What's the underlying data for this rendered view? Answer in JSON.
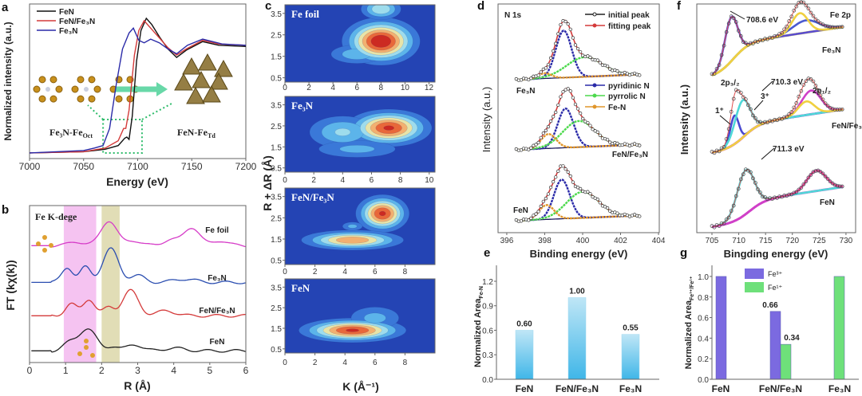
{
  "panel_labels": [
    "a",
    "b",
    "c",
    "d",
    "e",
    "f",
    "g"
  ],
  "chart_data": [
    {
      "panel": "a",
      "type": "line",
      "xlabel": "Energy (eV)",
      "ylabel": "Normalized intensity (a.u.)",
      "xlim": [
        7000,
        7200
      ],
      "xticks": [
        "7000",
        "7050",
        "7100",
        "7150",
        "7200"
      ],
      "series": [
        {
          "name": "FeN",
          "color": "#111111",
          "points": [
            [
              7000,
              0
            ],
            [
              7050,
              0.01
            ],
            [
              7070,
              0.03
            ],
            [
              7082,
              0.06
            ],
            [
              7088,
              0.12
            ],
            [
              7090,
              0.13
            ],
            [
              7092,
              0.11
            ],
            [
              7095,
              0.3
            ],
            [
              7099,
              0.75
            ],
            [
              7103,
              1.0
            ],
            [
              7108,
              1.1
            ],
            [
              7113,
              1.05
            ],
            [
              7120,
              0.95
            ],
            [
              7128,
              0.85
            ],
            [
              7136,
              0.78
            ],
            [
              7145,
              0.84
            ],
            [
              7160,
              0.91
            ],
            [
              7175,
              0.88
            ],
            [
              7200,
              0.87
            ]
          ]
        },
        {
          "name": "FeN/Fe₃N",
          "color": "#d43a3a",
          "points": [
            [
              7000,
              0
            ],
            [
              7050,
              0.01
            ],
            [
              7070,
              0.04
            ],
            [
              7082,
              0.1
            ],
            [
              7087,
              0.2
            ],
            [
              7089,
              0.2
            ],
            [
              7092,
              0.35
            ],
            [
              7097,
              0.8
            ],
            [
              7101,
              1.0
            ],
            [
              7106,
              1.08
            ],
            [
              7112,
              1.02
            ],
            [
              7120,
              0.94
            ],
            [
              7128,
              0.86
            ],
            [
              7136,
              0.8
            ],
            [
              7145,
              0.85
            ],
            [
              7160,
              0.92
            ],
            [
              7175,
              0.89
            ],
            [
              7200,
              0.88
            ]
          ]
        },
        {
          "name": "Fe₃N",
          "color": "#2a2aa8",
          "points": [
            [
              7000,
              0
            ],
            [
              7050,
              0.02
            ],
            [
              7060,
              0.04
            ],
            [
              7068,
              0.06
            ],
            [
              7074,
              0.2
            ],
            [
              7080,
              0.55
            ],
            [
              7086,
              0.85
            ],
            [
              7092,
              0.98
            ],
            [
              7096,
              1.02
            ],
            [
              7101,
              0.92
            ],
            [
              7106,
              0.9
            ],
            [
              7112,
              0.93
            ],
            [
              7120,
              0.9
            ],
            [
              7128,
              0.85
            ],
            [
              7136,
              0.81
            ],
            [
              7146,
              0.88
            ],
            [
              7160,
              0.93
            ],
            [
              7178,
              0.89
            ],
            [
              7200,
              0.88
            ]
          ]
        }
      ],
      "annotations": {
        "left": "Fe₃N-Fe",
        "left_sub": "Oct",
        "right": "FeN-Fe",
        "right_sub": "Td"
      }
    },
    {
      "panel": "b",
      "type": "line",
      "xlabel": "R (Å)",
      "ylabel": "FT (kχ(k))",
      "xlim": [
        0,
        6
      ],
      "xticks": [
        "0",
        "1",
        "2",
        "3",
        "4",
        "5",
        "6"
      ],
      "edge_label": "Fe K-dege",
      "bands": [
        {
          "from": 0.95,
          "to": 1.85,
          "color": "#f3b4ee"
        },
        {
          "from": 2.0,
          "to": 2.5,
          "color": "#d9d4a4"
        }
      ],
      "series": [
        {
          "name": "Fe foil",
          "color": "#d63cc8",
          "offset": 3.2,
          "peaks": [
            [
              1.3,
              0.12,
              0.2
            ],
            [
              2.2,
              0.75,
              0.22
            ],
            [
              2.9,
              0.15,
              0.2
            ],
            [
              3.9,
              0.18,
              0.2
            ],
            [
              4.5,
              0.55,
              0.22
            ],
            [
              5.3,
              0.15,
              0.2
            ]
          ]
        },
        {
          "name": "Fe₃N",
          "color": "#2a4db0",
          "offset": 2.1,
          "peaks": [
            [
              1.05,
              0.45,
              0.15
            ],
            [
              1.55,
              0.45,
              0.15
            ],
            [
              2.25,
              1.0,
              0.22
            ],
            [
              3.0,
              0.2,
              0.2
            ],
            [
              4.3,
              0.1,
              0.3
            ]
          ]
        },
        {
          "name": "FeN/Fe₃N",
          "color": "#d43a3a",
          "offset": 1.1,
          "peaks": [
            [
              1.15,
              0.35,
              0.16
            ],
            [
              1.65,
              0.5,
              0.16
            ],
            [
              2.2,
              0.25,
              0.15
            ],
            [
              2.8,
              0.75,
              0.22
            ],
            [
              3.8,
              0.15,
              0.25
            ]
          ]
        },
        {
          "name": "FeN",
          "color": "#222222",
          "offset": 0.05,
          "peaks": [
            [
              1.1,
              0.2,
              0.18
            ],
            [
              1.6,
              0.65,
              0.25
            ],
            [
              2.3,
              0.12,
              0.15
            ],
            [
              2.9,
              0.2,
              0.2
            ],
            [
              4.0,
              0.08,
              0.3
            ]
          ]
        }
      ]
    },
    {
      "panel": "c",
      "type": "heatmap",
      "xlabel": "K (Å⁻¹)",
      "ylabel": "R + ΔR (Å)",
      "yticks": [
        "0.5",
        "1.5",
        "2.5",
        "3.5"
      ],
      "subplots": [
        {
          "name": "Fe foil",
          "xlim": [
            0,
            12.5
          ],
          "xticks": [
            "0",
            "2",
            "4",
            "6",
            "8",
            "10",
            "12"
          ],
          "blobs": [
            [
              8,
              2.2,
              1.0,
              1.6,
              0.55
            ],
            [
              8,
              3.7,
              0.5,
              1.0,
              0.3
            ],
            [
              6,
              1.6,
              0.35,
              1.5,
              0.3
            ]
          ]
        },
        {
          "name": "Fe₃N",
          "xlim": [
            0,
            10.4
          ],
          "xticks": [
            "0",
            "2",
            "4",
            "6",
            "8",
            "10"
          ],
          "blobs": [
            [
              7.2,
              2.4,
              0.9,
              1.5,
              0.45
            ],
            [
              4,
              2.2,
              0.4,
              1.5,
              0.5
            ],
            [
              5,
              1.4,
              0.3,
              2,
              0.3
            ]
          ]
        },
        {
          "name": "FeN/Fe₃N",
          "xlim": [
            0,
            10
          ],
          "xticks": [
            "0",
            "2",
            "4",
            "6",
            "8"
          ],
          "blobs": [
            [
              6.5,
              2.7,
              0.9,
              0.9,
              0.45
            ],
            [
              4.5,
              1.45,
              0.75,
              1.8,
              0.25
            ],
            [
              4.5,
              2.1,
              0.3,
              0.5,
              0.15
            ]
          ]
        },
        {
          "name": "FeN",
          "xlim": [
            0,
            10
          ],
          "xticks": [
            "0",
            "2",
            "4",
            "6",
            "8"
          ],
          "blobs": [
            [
              4.5,
              1.4,
              0.9,
              1.8,
              0.3
            ],
            [
              6,
              2.0,
              0.3,
              1.2,
              0.4
            ]
          ]
        }
      ],
      "colorscale": [
        "#2444b4",
        "#3a78d8",
        "#5cb4ea",
        "#9edcec",
        "#e8e4a8",
        "#f2b070",
        "#e8683a",
        "#cc2a22"
      ]
    },
    {
      "panel": "d",
      "type": "line",
      "title": "N 1s",
      "xlabel": "Binding energy (eV)",
      "ylabel": "Intensity (a.u.)",
      "xlim": [
        396,
        404
      ],
      "xticks": [
        "396",
        "398",
        "400",
        "402",
        "404"
      ],
      "legend": [
        {
          "label": "initial peak",
          "color": "#222222"
        },
        {
          "label": "fitting peak",
          "color": "#d43a3a"
        },
        {
          "label": "pyridinic N",
          "color": "#2a2aa8"
        },
        {
          "label": "pyrrolic N",
          "color": "#4cd94c"
        },
        {
          "label": "Fe-N",
          "color": "#e0952a"
        }
      ],
      "stacks": [
        {
          "label": "Fe₃N",
          "components": [
            [
              399.0,
              0.72,
              0.42
            ],
            [
              400.1,
              0.3,
              0.95
            ],
            [
              398.0,
              0.08,
              0.35
            ]
          ]
        },
        {
          "label": "FeN/Fe₃N",
          "components": [
            [
              399.1,
              0.6,
              0.42
            ],
            [
              399.8,
              0.4,
              0.85
            ],
            [
              398.2,
              0.22,
              0.4
            ]
          ]
        },
        {
          "label": "FeN",
          "components": [
            [
              398.9,
              0.6,
              0.42
            ],
            [
              400.0,
              0.4,
              0.85
            ],
            [
              398.1,
              0.22,
              0.4
            ]
          ]
        }
      ]
    },
    {
      "panel": "e",
      "type": "bar",
      "ylabel": "Normalized Area",
      "ylabel_sub": "Fe-N",
      "categories": [
        "FeN",
        "FeN/Fe₃N",
        "Fe₃N"
      ],
      "values": [
        0.6,
        1.0,
        0.55
      ],
      "value_labels": [
        "0.60",
        "1.00",
        "0.55"
      ],
      "ylim": [
        0,
        1.4
      ],
      "yticks": [
        "0.0",
        "0.3",
        "0.6",
        "0.9",
        "1.2"
      ],
      "color": "#5cc4ec"
    },
    {
      "panel": "f",
      "type": "line",
      "title": "Fe 2p",
      "xlabel": "Bingding energy (eV)",
      "ylabel": "Intensity (a.u.)",
      "xlim": [
        705,
        730
      ],
      "xticks": [
        "705",
        "710",
        "715",
        "720",
        "725",
        "730"
      ],
      "stacks": [
        {
          "label": "Fe₃N",
          "bg": {
            "center": 709,
            "width": 1.5,
            "amp": 0.45,
            "slope": 0.012,
            "color": "#e6e64c"
          },
          "components": [
            [
              708.6,
              0.65,
              1.2,
              "#5a4bd0"
            ],
            [
              722.5,
              0.18,
              2.4,
              "#4a5ad0"
            ],
            [
              721.4,
              0.3,
              1.5,
              "#f0d040"
            ]
          ]
        },
        {
          "label": "FeN/Fe₃N",
          "bg": {
            "center": 711,
            "width": 1.5,
            "amp": 0.35,
            "slope": 0.012,
            "color": "#d040c8"
          },
          "components": [
            [
              709.2,
              0.42,
              0.8,
              "#4a4ad0"
            ],
            [
              710.7,
              0.55,
              1.4,
              "#4fd8d8"
            ],
            [
              723.5,
              0.35,
              1.8,
              "#d040c8"
            ],
            [
              722.6,
              0.2,
              1.5,
              "#f0d040"
            ]
          ]
        },
        {
          "label": "FeN",
          "bg": {
            "center": 712,
            "width": 1.5,
            "amp": 0.3,
            "slope": 0.012,
            "color": "#d040c8"
          },
          "components": [
            [
              711.3,
              0.65,
              1.6,
              "#4fd8d8"
            ],
            [
              724.5,
              0.3,
              1.8,
              "#d040c8"
            ]
          ]
        }
      ],
      "annotations": [
        "708.6 eV",
        "710.3 eV",
        "711.3 eV",
        "2p₃/₂",
        "2p₁/₂",
        "3⁺",
        "1⁺"
      ]
    },
    {
      "panel": "g",
      "type": "bar",
      "ylabel": "Normalized Area",
      "ylabel_sub": "Fe³⁺/Fe¹⁺",
      "categories": [
        "FeN",
        "FeN/Fe₃N",
        "Fe₃N"
      ],
      "series": [
        {
          "name": "Fe³⁺",
          "color": "#7b6ae0",
          "values": [
            1.0,
            0.66,
            0
          ]
        },
        {
          "name": "Fe¹⁺",
          "color": "#6ee07a",
          "values": [
            0,
            0.34,
            1.0
          ]
        }
      ],
      "value_labels": [
        "0.66",
        "0.34"
      ],
      "ylim": [
        0,
        1.1
      ],
      "yticks": [
        "0.0",
        "0.2",
        "0.4",
        "0.6",
        "0.8",
        "1.0"
      ]
    }
  ]
}
